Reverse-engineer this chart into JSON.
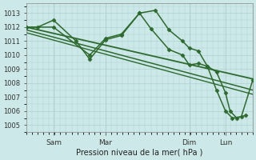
{
  "bg_color": "#cce8e8",
  "grid_color": "#b0d0d0",
  "line_color": "#2d6a2d",
  "xlabel": "Pression niveau de la mer( hPa )",
  "ylim": [
    1004.5,
    1013.7
  ],
  "yticks": [
    1005,
    1006,
    1007,
    1008,
    1009,
    1010,
    1011,
    1012,
    1013
  ],
  "x_tick_positions": [
    0.12,
    0.35,
    0.72,
    0.88
  ],
  "x_tick_labels": [
    "Sam",
    "Mar",
    "Dim",
    "Lun"
  ],
  "xlim": [
    0,
    1.0
  ],
  "series": [
    {
      "x": [
        0.0,
        0.05,
        0.12,
        0.22,
        0.28,
        0.35,
        0.42,
        0.5,
        0.57,
        0.63,
        0.69,
        0.72,
        0.76,
        0.8,
        0.84,
        0.88,
        0.9,
        0.93,
        0.97
      ],
      "y": [
        1012.0,
        1012.0,
        1012.5,
        1011.0,
        1009.7,
        1011.1,
        1011.4,
        1013.0,
        1013.2,
        1011.8,
        1011.0,
        1010.5,
        1010.3,
        1009.2,
        1008.8,
        1007.3,
        1006.0,
        1005.5,
        1005.7
      ],
      "marker": "D",
      "markersize": 2.5,
      "linewidth": 1.1
    },
    {
      "x": [
        0.0,
        0.12,
        0.28,
        0.35,
        0.42,
        0.5,
        0.55,
        0.63,
        0.69,
        0.72,
        0.76,
        0.8,
        0.84,
        0.88,
        0.91,
        0.95,
        1.0
      ],
      "y": [
        1012.0,
        1012.0,
        1010.0,
        1011.2,
        1011.5,
        1013.0,
        1011.9,
        1010.4,
        1010.0,
        1009.3,
        1009.4,
        1009.2,
        1007.5,
        1006.0,
        1005.5,
        1005.6,
        1008.2
      ],
      "marker": "D",
      "markersize": 2.5,
      "linewidth": 1.1
    },
    {
      "x": [
        0.0,
        1.0
      ],
      "y": [
        1012.0,
        1008.3
      ],
      "marker": null,
      "markersize": 0,
      "linewidth": 1.3
    },
    {
      "x": [
        0.0,
        1.0
      ],
      "y": [
        1011.8,
        1007.5
      ],
      "marker": null,
      "markersize": 0,
      "linewidth": 1.1
    },
    {
      "x": [
        0.0,
        1.0
      ],
      "y": [
        1011.6,
        1007.2
      ],
      "marker": null,
      "markersize": 0,
      "linewidth": 1.0
    }
  ]
}
